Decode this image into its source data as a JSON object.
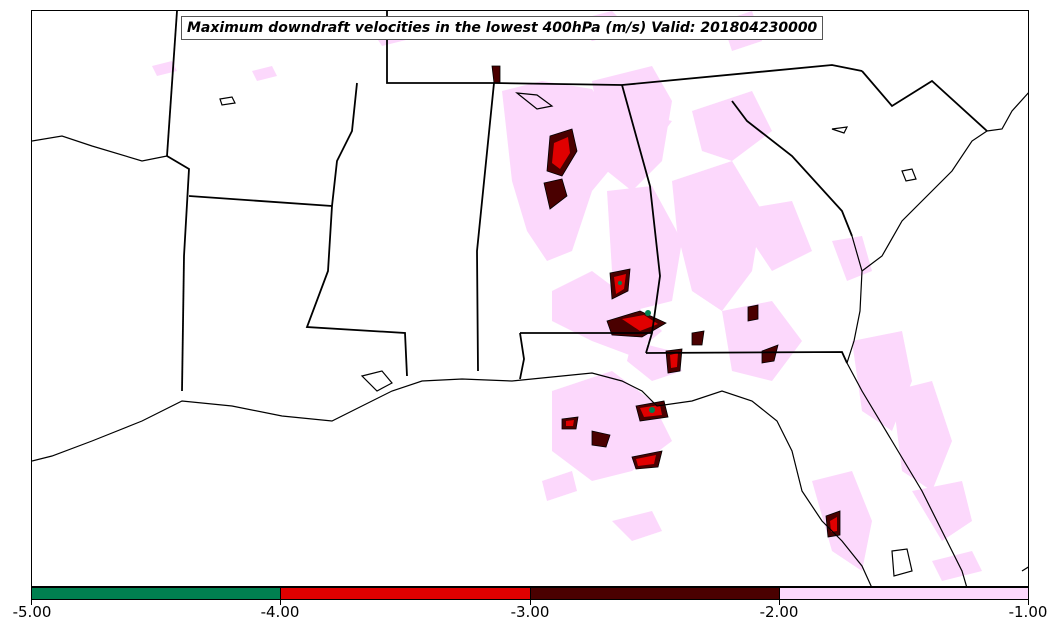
{
  "title": "Maximum downdraft velocities in the lowest 400hPa (m/s) Valid: 201804230000",
  "colorbar": {
    "segments": [
      {
        "range": "-5.00 to -4.00",
        "color": "#008050"
      },
      {
        "range": "-4.00 to -3.00",
        "color": "#e00000"
      },
      {
        "range": "-3.00 to -2.00",
        "color": "#4a0000"
      },
      {
        "range": "-2.00 to -1.00",
        "color": "#fcd8fc"
      }
    ],
    "ticks": [
      "-5.00",
      "-4.00",
      "-3.00",
      "-2.00",
      "-1.00"
    ]
  },
  "map": {
    "region": "southeastern United States",
    "states_shown": [
      "Arkansas",
      "Tennessee",
      "Louisiana",
      "Mississippi",
      "Alabama",
      "Georgia",
      "South Carolina",
      "Florida"
    ],
    "field": "downdraft velocity shading"
  }
}
